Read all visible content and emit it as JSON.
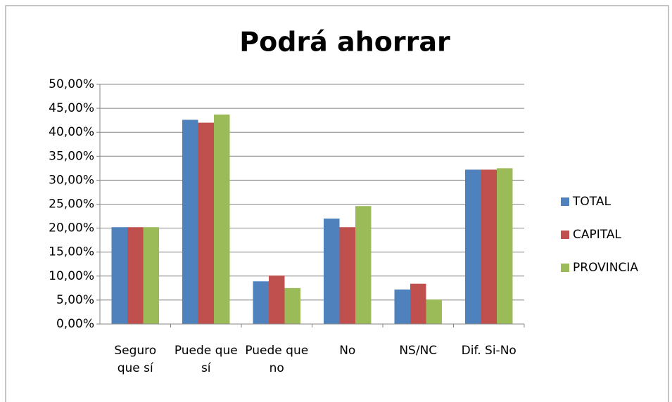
{
  "chart_data": {
    "type": "bar",
    "title": "Podrá ahorrar",
    "categories": [
      "Seguro que sí",
      "Puede que sí",
      "Puede que no",
      "No",
      "NS/NC",
      "Dif. Si-No"
    ],
    "series": [
      {
        "name": "TOTAL",
        "color": "#4f81bd",
        "values": [
          20.2,
          42.6,
          8.9,
          22.0,
          7.2,
          32.2
        ]
      },
      {
        "name": "CAPITAL",
        "color": "#c0504d",
        "values": [
          20.2,
          42.0,
          10.1,
          20.2,
          8.4,
          32.2
        ]
      },
      {
        "name": "PROVINCIA",
        "color": "#9bbb59",
        "values": [
          20.2,
          43.7,
          7.5,
          24.6,
          5.1,
          32.5
        ]
      }
    ],
    "ylim": [
      0,
      50
    ],
    "yticks": [
      {
        "value": 0,
        "label": "0,00%"
      },
      {
        "value": 5,
        "label": "5,00%"
      },
      {
        "value": 10,
        "label": "10,00%"
      },
      {
        "value": 15,
        "label": "15,00%"
      },
      {
        "value": 20,
        "label": "20,00%"
      },
      {
        "value": 25,
        "label": "25,00%"
      },
      {
        "value": 30,
        "label": "30,00%"
      },
      {
        "value": 35,
        "label": "35,00%"
      },
      {
        "value": 40,
        "label": "40,00%"
      },
      {
        "value": 45,
        "label": "45,00%"
      },
      {
        "value": 50,
        "label": "50,00%"
      }
    ],
    "grid": true,
    "legend": "right"
  }
}
